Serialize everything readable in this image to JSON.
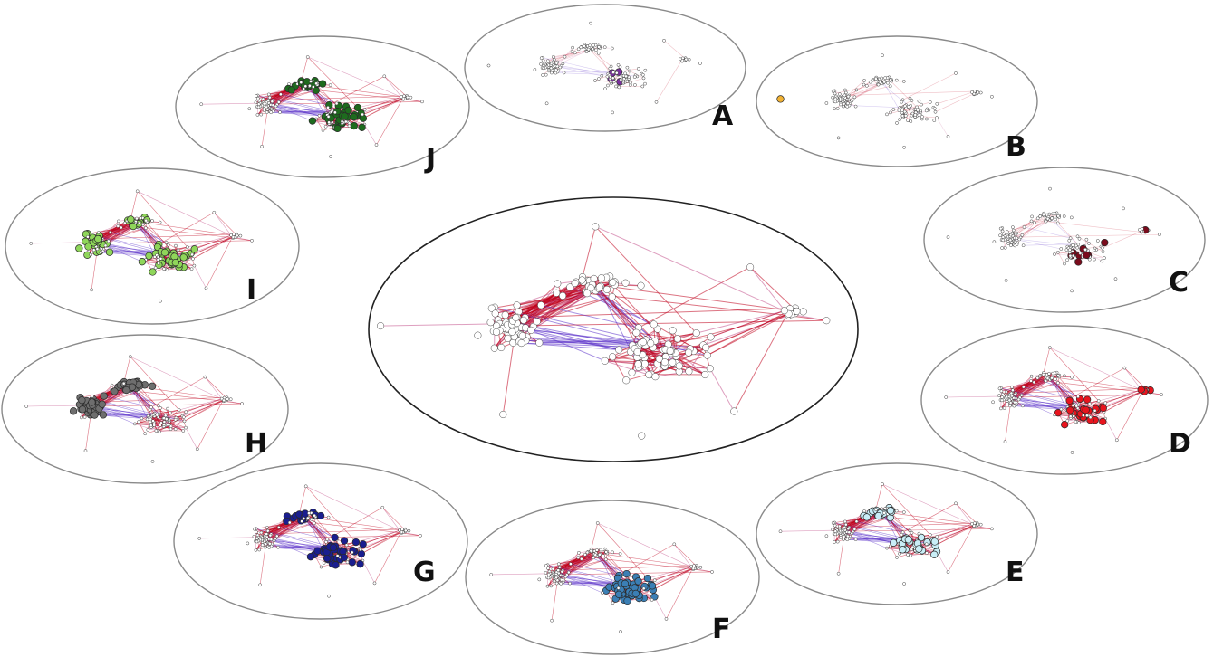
{
  "figure": {
    "center_label": "",
    "panels": [
      {
        "label": "A",
        "highlight_color": "#7b2fa0",
        "highlight_count": 4
      },
      {
        "label": "B",
        "highlight_color": "#f2b233",
        "highlight_count": 1
      },
      {
        "label": "C",
        "highlight_color": "#7a0b1c",
        "highlight_count": 9
      },
      {
        "label": "D",
        "highlight_color": "#e8141e",
        "highlight_count": 30
      },
      {
        "label": "E",
        "highlight_color": "#c9eef7",
        "highlight_count": 45
      },
      {
        "label": "F",
        "highlight_color": "#3b7fb5",
        "highlight_count": 55
      },
      {
        "label": "G",
        "highlight_color": "#1a1e8f",
        "highlight_count": 60
      },
      {
        "label": "H",
        "highlight_color": "#6e6e6e",
        "highlight_count": 75
      },
      {
        "label": "I",
        "highlight_color": "#8fd65a",
        "highlight_count": 65
      },
      {
        "label": "J",
        "highlight_color": "#1e6b1e",
        "highlight_count": 50
      }
    ]
  },
  "colors": {
    "edge_red": "#c0001c",
    "edge_purple": "#5a2fc8",
    "edge_pink": "#c2508a",
    "node_white": "#ffffff",
    "node_stroke": "#444444",
    "ellipse_stroke": "#8a8a8a",
    "center_ellipse_stroke": "#222222"
  }
}
